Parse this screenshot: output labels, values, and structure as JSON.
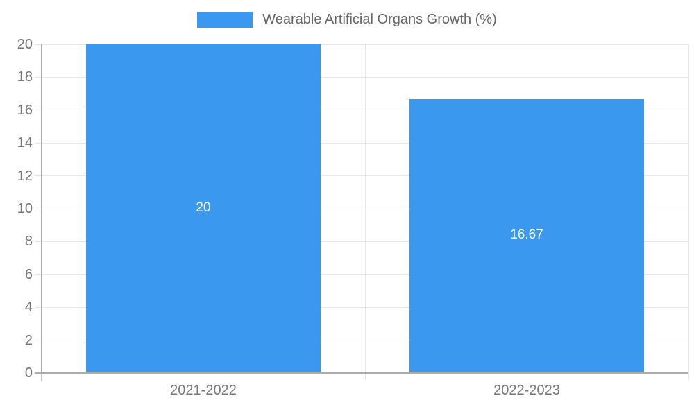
{
  "chart_data": {
    "type": "bar",
    "title": "Wearable Artificial Organs Growth (%)",
    "legend": {
      "label": "Wearable Artificial Organs Growth (%)",
      "position": "top"
    },
    "categories": [
      "2021-2022",
      "2022-2023"
    ],
    "series": [
      {
        "name": "Wearable Artificial Organs Growth (%)",
        "values": [
          20,
          16.67
        ]
      }
    ],
    "bar_value_labels": [
      "20",
      "16.67"
    ],
    "xlabel": "",
    "ylabel": "",
    "ylim": [
      0,
      20
    ],
    "yticks": [
      0,
      2,
      4,
      6,
      8,
      10,
      12,
      14,
      16,
      18,
      20
    ],
    "grid": true,
    "colors": {
      "bar": "#3A99EE",
      "grid": "#e6e6e6",
      "axis": "#ababab",
      "boundary_tick": "#c6c6c6",
      "tick_text": "#777777",
      "legend_text": "#666666",
      "bar_label": "#ffffff",
      "background": "#ffffff"
    }
  }
}
